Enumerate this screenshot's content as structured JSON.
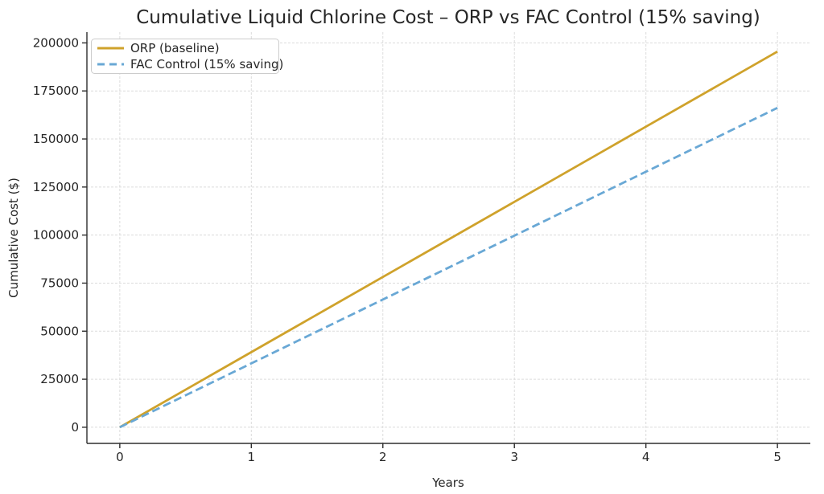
{
  "figure": {
    "title": "Cumulative Liquid Chlorine Cost – ORP vs FAC Control (15% saving)",
    "xlabel": "Years",
    "ylabel": "Cumulative Cost ($)"
  },
  "legend": {
    "position": "upper left",
    "items": [
      {
        "label": "ORP (baseline)",
        "color": "#CFA22B",
        "style": "solid"
      },
      {
        "label": "FAC Control (15% saving)",
        "color": "#69A8D5",
        "style": "dashed"
      }
    ]
  },
  "colors": {
    "orp_line": "#CFA22B",
    "fac_line": "#69A8D5",
    "grid": "#dcdcdc",
    "spine": "#2e2e2e",
    "text": "#262626",
    "legend_border": "#cccccc",
    "background": "#ffffff"
  },
  "chart_data": {
    "type": "line",
    "title": "Cumulative Liquid Chlorine Cost – ORP vs FAC Control (15% saving)",
    "xlabel": "Years",
    "ylabel": "Cumulative Cost ($)",
    "x": [
      0,
      1,
      2,
      3,
      4,
      5
    ],
    "series": [
      {
        "name": "ORP (baseline)",
        "color": "#CFA22B",
        "style": "solid",
        "values": [
          0,
          39100,
          78200,
          117300,
          156400,
          195500
        ]
      },
      {
        "name": "FAC Control (15% saving)",
        "color": "#69A8D5",
        "style": "dashed",
        "values": [
          0,
          33235,
          66470,
          99705,
          132940,
          166175
        ]
      }
    ],
    "xticks": [
      0,
      1,
      2,
      3,
      4,
      5
    ],
    "yticks": [
      0,
      25000,
      50000,
      75000,
      100000,
      125000,
      150000,
      175000,
      200000
    ],
    "xlim": [
      -0.25,
      5.25
    ],
    "ylim": [
      -8400,
      205600
    ],
    "grid": true,
    "grid_style": "dashed",
    "legend_position": "upper left"
  }
}
